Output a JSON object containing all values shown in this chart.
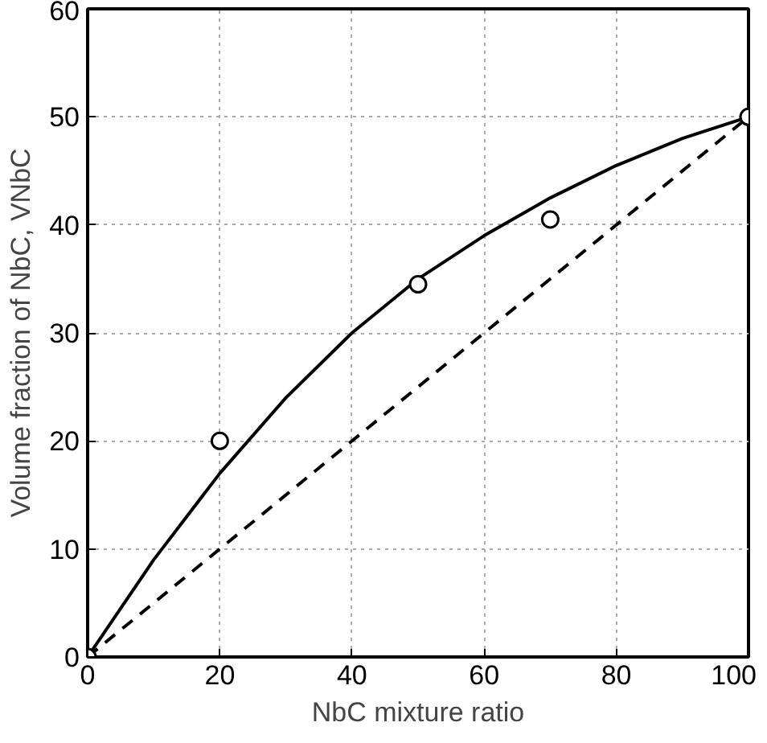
{
  "chart_data": {
    "type": "scatter",
    "xlabel": "NbC mixture ratio",
    "ylabel": "Volume fraction of NbC, VNbC",
    "xlim": [
      0,
      100
    ],
    "ylim": [
      0,
      60
    ],
    "xticks": [
      0,
      20,
      40,
      60,
      80,
      100
    ],
    "yticks": [
      0,
      10,
      20,
      30,
      40,
      50,
      60
    ],
    "grid": true,
    "series": [
      {
        "marker": "circle",
        "color": "#000000",
        "x": [
          0,
          20,
          50,
          70,
          100
        ],
        "values": [
          0,
          20,
          34.5,
          40.5,
          50
        ]
      },
      {
        "type": "line",
        "line_style": "solid",
        "color": "#000000",
        "x": [
          0,
          10,
          20,
          30,
          40,
          50,
          60,
          70,
          80,
          90,
          100
        ],
        "values": [
          0,
          9,
          17,
          24,
          30,
          35,
          39,
          42.5,
          45.5,
          48,
          50
        ]
      },
      {
        "type": "line",
        "line_style": "dashed",
        "color": "#000000",
        "x": [
          0,
          100
        ],
        "values": [
          0,
          50
        ]
      }
    ]
  }
}
